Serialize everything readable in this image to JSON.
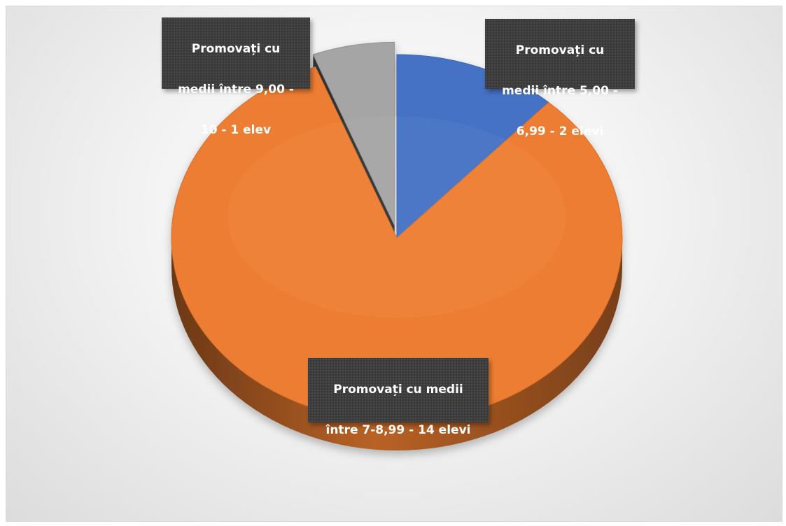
{
  "chart_data": {
    "type": "pie",
    "style": "3d-exploded",
    "slices": [
      {
        "label": "Promovați cu medii între 5,00 - 6,99 -  2 elevi",
        "label_lines": [
          "Promovați cu",
          "medii între 5,00 -",
          "6,99 -  2 elevi"
        ],
        "value": 2,
        "color": "#4472c4"
      },
      {
        "label": "Promovați cu medii între 7-8,99 - 14 elevi",
        "label_lines": [
          "Promovați cu medii",
          "între 7-8,99 - 14 elevi"
        ],
        "value": 14,
        "color": "#ed7d31"
      },
      {
        "label": "Promovați cu medii între 9,00 - 10  - 1 elev",
        "label_lines": [
          "Promovați cu",
          "medii între 9,00 -",
          "10  - 1 elev"
        ],
        "value": 1,
        "color": "#a5a5a5"
      }
    ],
    "start_angle": "12 o'clock",
    "direction": "clockwise",
    "legend": "none",
    "title": ""
  }
}
